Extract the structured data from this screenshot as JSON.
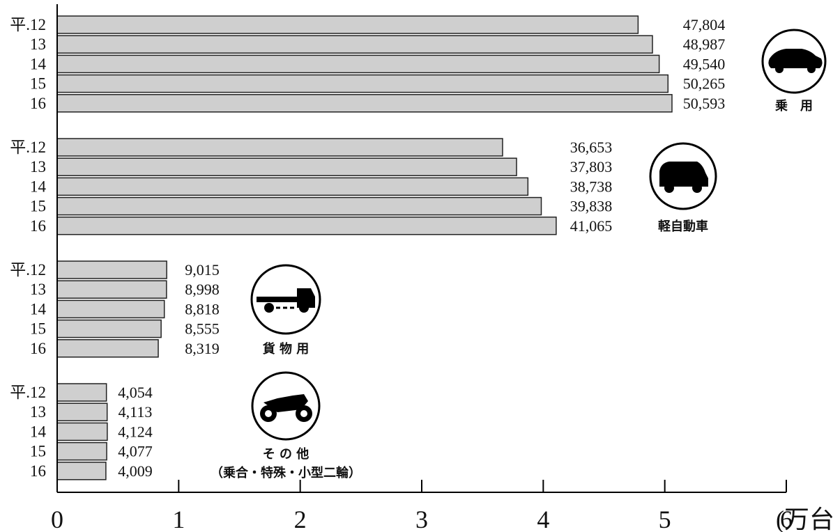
{
  "chart_data": {
    "type": "bar",
    "orientation": "horizontal",
    "x_unit": "(万台)",
    "xlim": [
      0,
      6
    ],
    "x_ticks": [
      "0",
      "1",
      "2",
      "3",
      "4",
      "5",
      "6"
    ],
    "year_labels": [
      "平.12",
      "13",
      "14",
      "15",
      "16"
    ],
    "groups": [
      {
        "label": "乗　用",
        "icon": "car-icon",
        "values": [
          47804,
          48987,
          49540,
          50265,
          50593
        ],
        "value_labels": [
          "47,804",
          "48,987",
          "49,540",
          "50,265",
          "50,593"
        ]
      },
      {
        "label": "軽自動車",
        "icon": "kei-car-icon",
        "values": [
          36653,
          37803,
          38738,
          39838,
          41065
        ],
        "value_labels": [
          "36,653",
          "37,803",
          "38,738",
          "39,838",
          "41,065"
        ]
      },
      {
        "label": "貨 物 用",
        "icon": "truck-icon",
        "values": [
          9015,
          8998,
          8818,
          8555,
          8319
        ],
        "value_labels": [
          "9,015",
          "8,998",
          "8,818",
          "8,555",
          "8,319"
        ]
      },
      {
        "label": "そ の 他",
        "sublabel": "（乗合・特殊・小型二輪）",
        "icon": "motorcycle-icon",
        "values": [
          4054,
          4113,
          4124,
          4077,
          4009
        ],
        "value_labels": [
          "4,054",
          "4,113",
          "4,124",
          "4,077",
          "4,009"
        ]
      }
    ]
  }
}
